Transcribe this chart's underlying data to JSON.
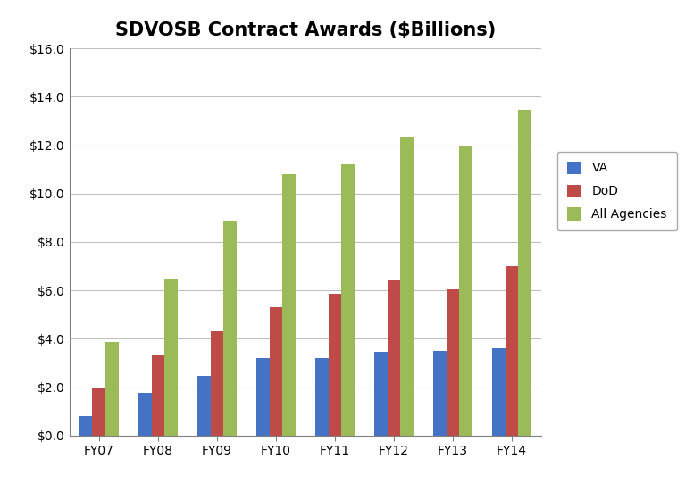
{
  "title": "SDVOSB Contract Awards ($Billions)",
  "categories": [
    "FY07",
    "FY08",
    "FY09",
    "FY10",
    "FY11",
    "FY12",
    "FY13",
    "FY14"
  ],
  "series": {
    "VA": [
      0.8,
      1.75,
      2.45,
      3.2,
      3.2,
      3.45,
      3.5,
      3.6
    ],
    "DoD": [
      1.95,
      3.3,
      4.3,
      5.3,
      5.85,
      6.4,
      6.05,
      7.0
    ],
    "All Agencies": [
      3.85,
      6.5,
      8.85,
      10.8,
      11.2,
      12.35,
      12.0,
      13.45
    ]
  },
  "colors": {
    "VA": "#4472C4",
    "DoD": "#BE4B48",
    "All Agencies": "#9BBB59"
  },
  "ylim": [
    0,
    16.0
  ],
  "yticks": [
    0.0,
    2.0,
    4.0,
    6.0,
    8.0,
    10.0,
    12.0,
    14.0,
    16.0
  ],
  "ytick_labels": [
    "$0.0",
    "$2.0",
    "$4.0",
    "$6.0",
    "$8.0",
    "$10.0",
    "$12.0",
    "$14.0",
    "$16.0"
  ],
  "bar_width": 0.22,
  "background_color": "#FFFFFF",
  "plot_bg_color": "#FFFFFF",
  "grid_color": "#C0C0C0",
  "title_fontsize": 15,
  "tick_fontsize": 10,
  "legend_fontsize": 10
}
